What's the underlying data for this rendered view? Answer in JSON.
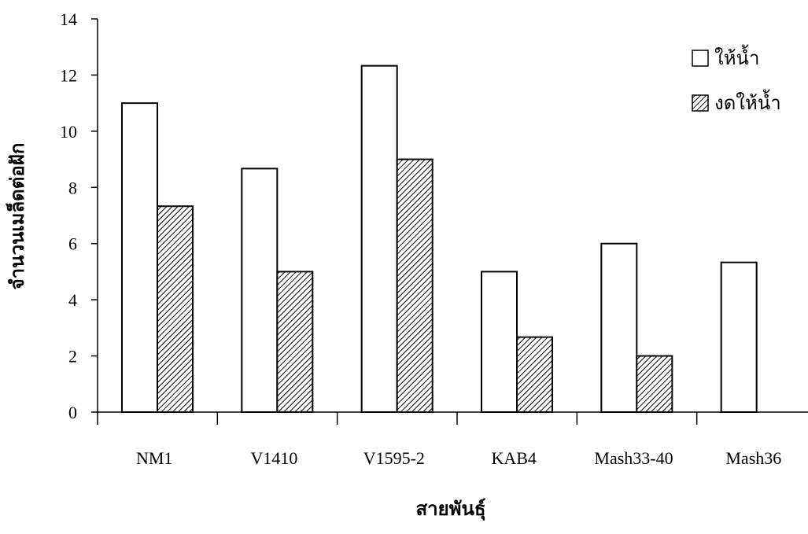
{
  "chart_data": {
    "type": "bar",
    "categories": [
      "NM1",
      "V1410",
      "V1595-2",
      "KAB4",
      "Mash33-40",
      "Mash36"
    ],
    "series": [
      {
        "name": "ให้น้ำ",
        "values": [
          11.0,
          8.67,
          12.33,
          5.0,
          6.0,
          5.33
        ],
        "fill": "white"
      },
      {
        "name": "งดให้น้ำ",
        "values": [
          7.33,
          5.0,
          9.0,
          2.67,
          2.0,
          0
        ],
        "fill": "hatch"
      }
    ],
    "xlabel": "สายพันธุ์",
    "ylabel": "จำนวนเมล็ดต่อฝัก",
    "ylim": [
      0,
      14
    ],
    "yticks": [
      0,
      2,
      4,
      6,
      8,
      10,
      12,
      14
    ],
    "grid": false,
    "legend_position": "top-right",
    "colors": {
      "bar_stroke": "#000000",
      "bar_fill": "#ffffff",
      "hatch": "#000000"
    }
  }
}
